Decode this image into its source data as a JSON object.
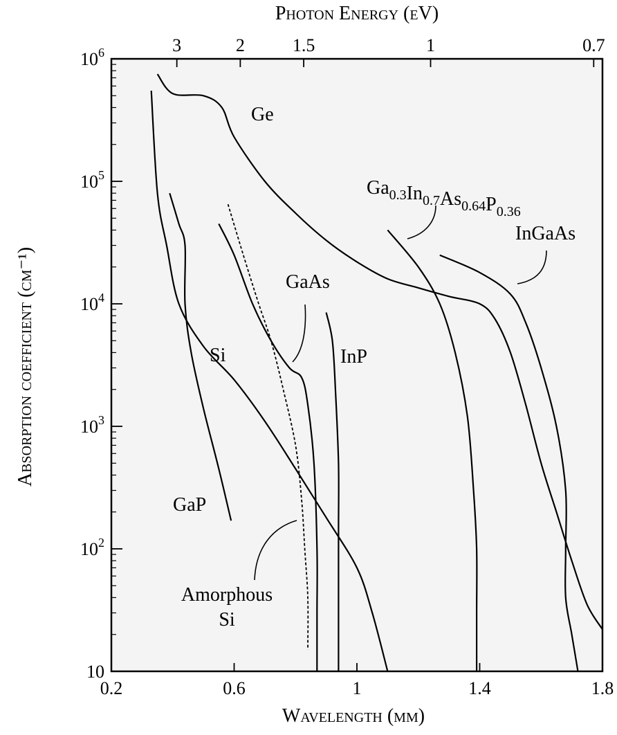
{
  "chart_data": {
    "type": "line",
    "title": "",
    "xlabel": "Wavelength (μm)",
    "ylabel": "Absorption coefficient (cm⁻¹)",
    "top_axis_label": "Photon Energy (eV)",
    "xlim": [
      0.2,
      1.8
    ],
    "ylim": [
      10,
      1000000
    ],
    "y_scale": "log",
    "grid": false,
    "background_color": "#f4f4f4",
    "x_ticks": [
      0.2,
      0.6,
      1.0,
      1.4,
      1.8
    ],
    "x_tick_labels": [
      "0.2",
      "0.6",
      "1",
      "1.4",
      "1.8"
    ],
    "y_ticks": [
      10,
      100,
      1000,
      10000,
      100000,
      1000000
    ],
    "y_tick_labels": [
      {
        "base": "10",
        "exp": ""
      },
      {
        "base": "10",
        "exp": "2"
      },
      {
        "base": "10",
        "exp": "3"
      },
      {
        "base": "10",
        "exp": "4"
      },
      {
        "base": "10",
        "exp": "5"
      },
      {
        "base": "10",
        "exp": "6"
      }
    ],
    "top_ticks": [
      {
        "label": "3",
        "energy_eV": 3.0
      },
      {
        "label": "2",
        "energy_eV": 2.0
      },
      {
        "label": "1.5",
        "energy_eV": 1.5
      },
      {
        "label": "1",
        "energy_eV": 1.0
      },
      {
        "label": "0.7",
        "energy_eV": 0.7
      }
    ],
    "series": [
      {
        "name": "Ge",
        "style": "solid",
        "points": [
          [
            0.35,
            750000
          ],
          [
            0.4,
            520000
          ],
          [
            0.5,
            500000
          ],
          [
            0.56,
            400000
          ],
          [
            0.6,
            230000
          ],
          [
            0.7,
            100000
          ],
          [
            0.8,
            55000
          ],
          [
            0.9,
            33000
          ],
          [
            1.0,
            22000
          ],
          [
            1.1,
            16000
          ],
          [
            1.2,
            13500
          ],
          [
            1.3,
            11500
          ],
          [
            1.4,
            10000
          ],
          [
            1.45,
            7500
          ],
          [
            1.5,
            4000
          ],
          [
            1.55,
            1500
          ],
          [
            1.6,
            500
          ],
          [
            1.65,
            200
          ],
          [
            1.7,
            80
          ],
          [
            1.75,
            35
          ],
          [
            1.8,
            22
          ]
        ]
      },
      {
        "name": "Si",
        "style": "solid",
        "points": [
          [
            0.33,
            550000
          ],
          [
            0.35,
            80000
          ],
          [
            0.38,
            30000
          ],
          [
            0.42,
            10000
          ],
          [
            0.5,
            4500
          ],
          [
            0.6,
            2400
          ],
          [
            0.7,
            1100
          ],
          [
            0.8,
            450
          ],
          [
            0.9,
            180
          ],
          [
            1.0,
            70
          ],
          [
            1.05,
            30
          ],
          [
            1.1,
            10
          ]
        ]
      },
      {
        "name": "GaP",
        "style": "solid",
        "points": [
          [
            0.39,
            80000
          ],
          [
            0.42,
            45000
          ],
          [
            0.44,
            30000
          ],
          [
            0.44,
            10000
          ],
          [
            0.46,
            4000
          ],
          [
            0.5,
            1400
          ],
          [
            0.55,
            450
          ],
          [
            0.59,
            170
          ]
        ]
      },
      {
        "name": "GaAs",
        "style": "solid",
        "points": [
          [
            0.55,
            45000
          ],
          [
            0.6,
            25000
          ],
          [
            0.66,
            10000
          ],
          [
            0.72,
            5000
          ],
          [
            0.78,
            3000
          ],
          [
            0.82,
            2500
          ],
          [
            0.84,
            1500
          ],
          [
            0.86,
            500
          ],
          [
            0.87,
            100
          ],
          [
            0.87,
            30
          ],
          [
            0.87,
            10
          ]
        ]
      },
      {
        "name": "Amorphous Si",
        "style": "dashed",
        "points": [
          [
            0.58,
            65000
          ],
          [
            0.63,
            25000
          ],
          [
            0.68,
            10000
          ],
          [
            0.72,
            5000
          ],
          [
            0.76,
            2000
          ],
          [
            0.8,
            700
          ],
          [
            0.82,
            250
          ],
          [
            0.83,
            100
          ],
          [
            0.84,
            40
          ],
          [
            0.84,
            15
          ]
        ]
      },
      {
        "name": "InP",
        "style": "solid",
        "points": [
          [
            0.9,
            8500
          ],
          [
            0.92,
            5000
          ],
          [
            0.93,
            2000
          ],
          [
            0.94,
            500
          ],
          [
            0.94,
            150
          ],
          [
            0.94,
            50
          ],
          [
            0.94,
            10
          ]
        ]
      },
      {
        "name": "Ga0.3In0.7As0.64P0.36",
        "style": "solid",
        "points": [
          [
            1.1,
            40000
          ],
          [
            1.2,
            20000
          ],
          [
            1.27,
            10000
          ],
          [
            1.32,
            4000
          ],
          [
            1.36,
            1200
          ],
          [
            1.38,
            300
          ],
          [
            1.39,
            100
          ],
          [
            1.39,
            30
          ],
          [
            1.39,
            10
          ]
        ]
      },
      {
        "name": "InGaAs",
        "style": "solid",
        "points": [
          [
            1.27,
            25000
          ],
          [
            1.4,
            18000
          ],
          [
            1.5,
            12000
          ],
          [
            1.55,
            7000
          ],
          [
            1.6,
            3000
          ],
          [
            1.65,
            1000
          ],
          [
            1.68,
            300
          ],
          [
            1.68,
            100
          ],
          [
            1.68,
            40
          ],
          [
            1.7,
            20
          ],
          [
            1.72,
            10
          ]
        ]
      }
    ],
    "annotations": [
      {
        "text": "Ge",
        "subs": []
      },
      {
        "text": "Si",
        "subs": []
      },
      {
        "text": "GaP",
        "subs": []
      },
      {
        "text": "GaAs",
        "subs": []
      },
      {
        "text": "InP",
        "subs": []
      },
      {
        "text": "InGaAs",
        "subs": []
      },
      {
        "text": "Amorphous",
        "subs": []
      },
      {
        "text": "Si",
        "subs": []
      },
      {
        "text": "Ga",
        "subs": [
          "0.3"
        ],
        "parts": [
          [
            "Ga",
            "0.3"
          ],
          [
            "In",
            "0.7"
          ],
          [
            "As",
            "0.64"
          ],
          [
            "P",
            "0.36"
          ]
        ]
      }
    ]
  }
}
